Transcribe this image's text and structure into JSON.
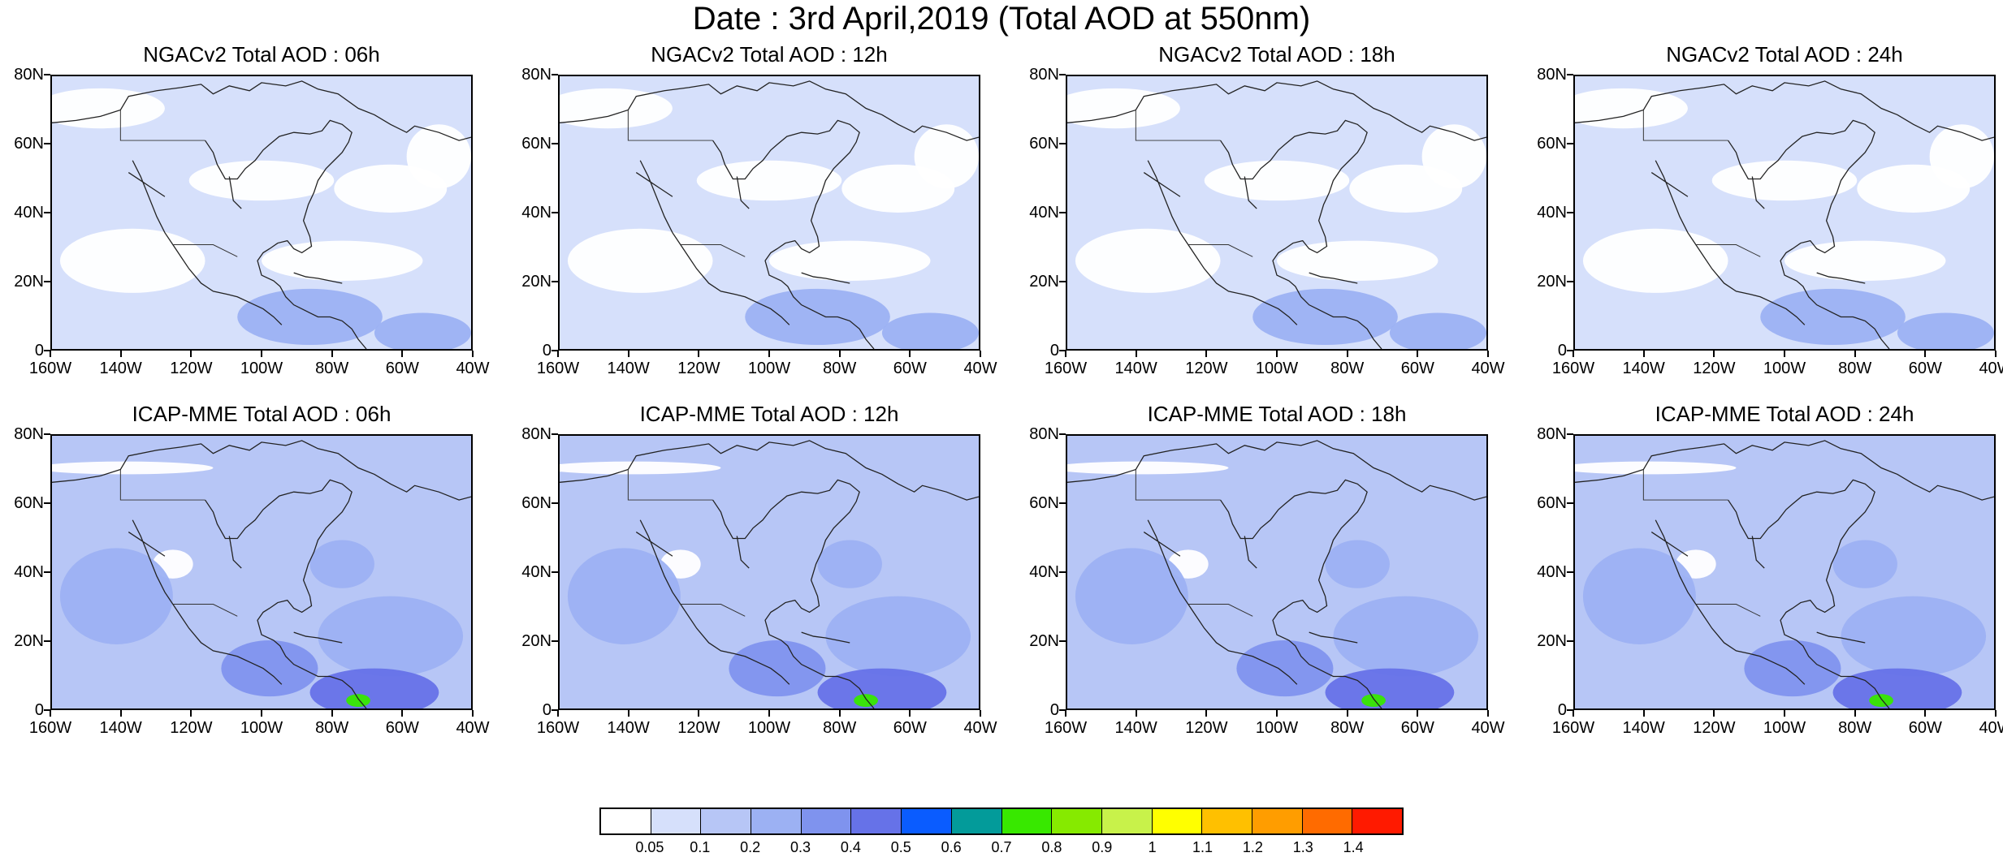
{
  "title": "Date : 3rd April,2019 (Total AOD at 550nm)",
  "panels": [
    {
      "title": "NGACv2 Total AOD : 06h"
    },
    {
      "title": "NGACv2 Total AOD : 12h"
    },
    {
      "title": "NGACv2 Total AOD : 18h"
    },
    {
      "title": "NGACv2 Total AOD : 24h"
    },
    {
      "title": "ICAP-MME Total AOD : 06h"
    },
    {
      "title": "ICAP-MME Total AOD : 12h"
    },
    {
      "title": "ICAP-MME Total AOD : 18h"
    },
    {
      "title": "ICAP-MME Total AOD : 24h"
    }
  ],
  "axes": {
    "lat_ticks": [
      "80N",
      "60N",
      "40N",
      "20N",
      "0"
    ],
    "lon_ticks": [
      "160W",
      "140W",
      "120W",
      "100W",
      "80W",
      "60W",
      "40W"
    ]
  },
  "legend": {
    "labels": [
      "0.05",
      "0.1",
      "0.2",
      "0.3",
      "0.4",
      "0.5",
      "0.6",
      "0.7",
      "0.8",
      "0.9",
      "1",
      "1.1",
      "1.2",
      "1.3",
      "1.4"
    ],
    "colors": [
      "#ffffff",
      "#d6e0fb",
      "#b7c6f6",
      "#9cb1f3",
      "#7f93ee",
      "#6672e8",
      "#0a5cff",
      "#039b9a",
      "#38e800",
      "#86ea00",
      "#c8f24a",
      "#ffff00",
      "#ffc000",
      "#ff9d00",
      "#ff6b00",
      "#ff1a00"
    ]
  }
}
